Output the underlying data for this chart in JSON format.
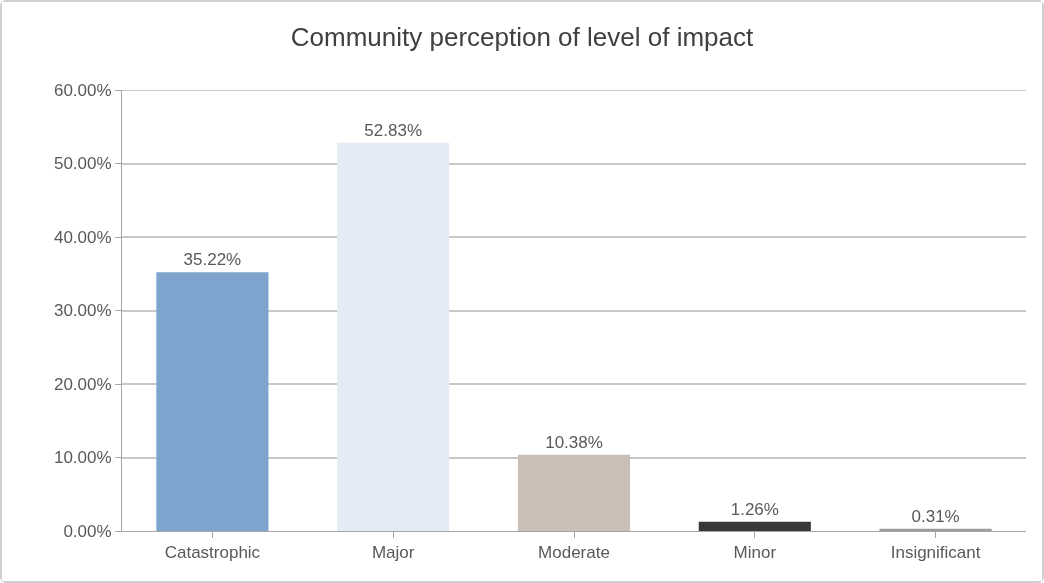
{
  "chart_data": {
    "type": "bar",
    "title": "Community perception of level of impact",
    "categories": [
      "Catastrophic",
      "Major",
      "Moderate",
      "Minor",
      "Insignificant"
    ],
    "values": [
      35.22,
      52.83,
      10.38,
      1.26,
      0.31
    ],
    "colors": [
      "#7ca4cd",
      "#e4ebf4",
      "#c9bfb7",
      "#383838",
      "#9c9c9c"
    ],
    "value_labels": [
      "35.22%",
      "52.83%",
      "10.38%",
      "1.26%",
      "0.31%"
    ],
    "ylim": [
      0,
      60
    ],
    "yticks": [
      {
        "value": 0,
        "label": "0.00%"
      },
      {
        "value": 10,
        "label": "10.00%"
      },
      {
        "value": 20,
        "label": "20.00%"
      },
      {
        "value": 30,
        "label": "30.00%"
      },
      {
        "value": 40,
        "label": "40.00%"
      },
      {
        "value": 50,
        "label": "50.00%"
      },
      {
        "value": 60,
        "label": "60.00%"
      }
    ],
    "grid": "y"
  }
}
